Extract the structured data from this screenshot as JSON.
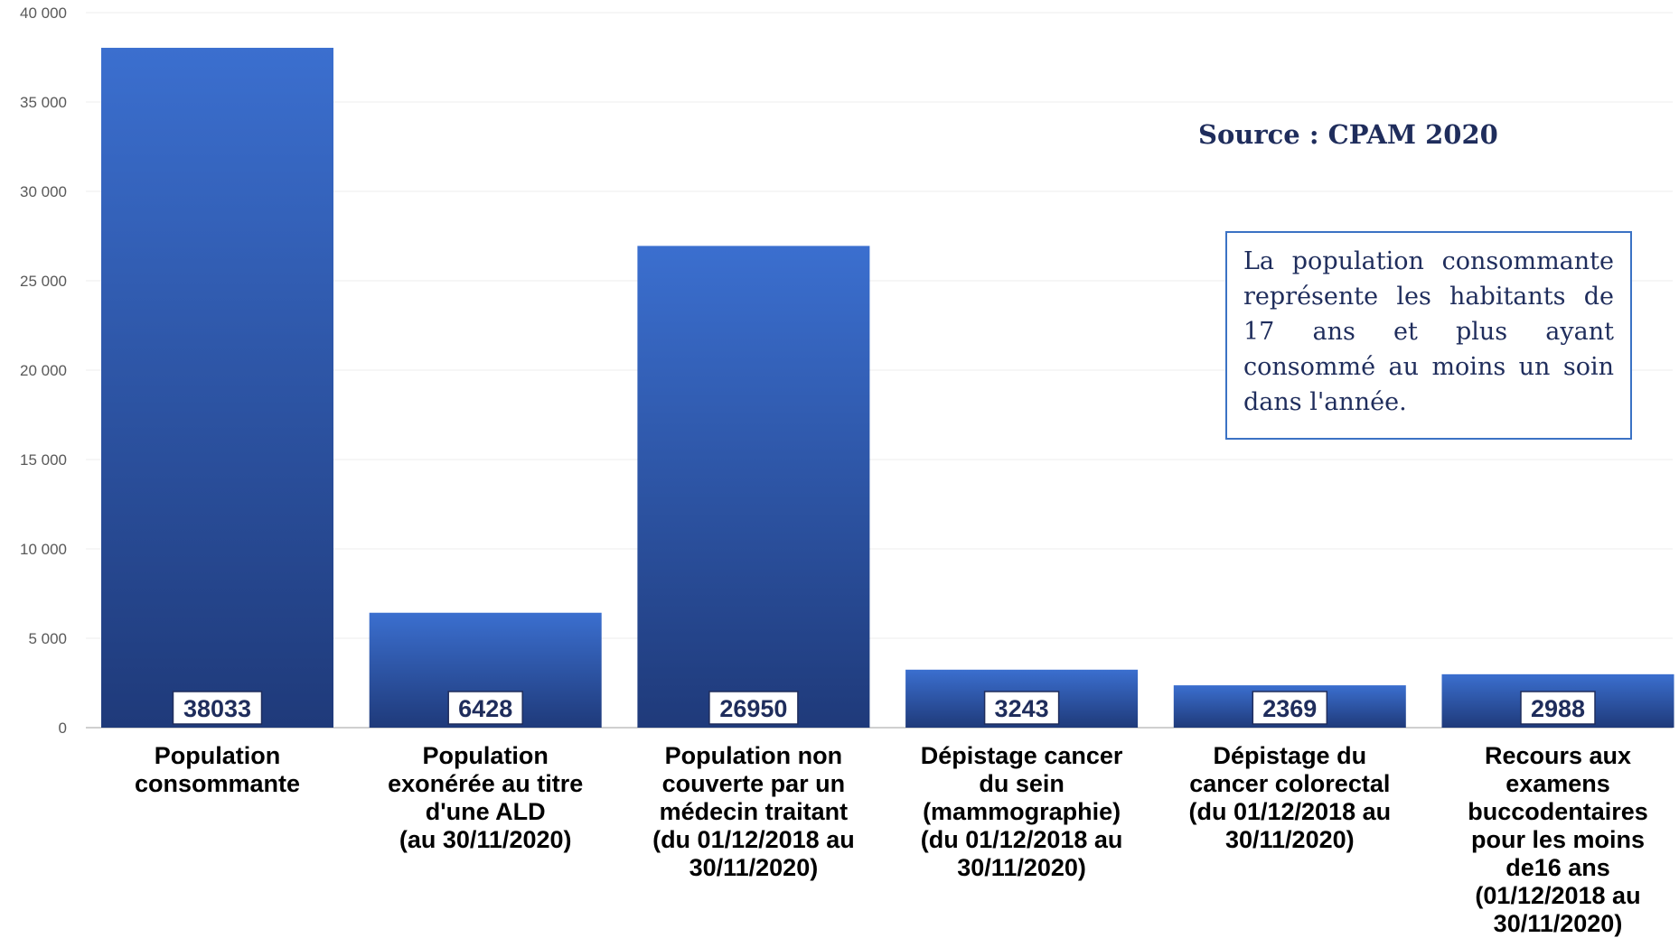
{
  "chart_data": {
    "type": "bar",
    "categories": [
      "Population\nconsommante",
      "Population\nexonérée au titre\nd'une ALD\n(au 30/11/2020)",
      "Population non\ncouverte par un\nmédecin traitant\n(du 01/12/2018 au\n30/11/2020)",
      "Dépistage cancer\ndu sein\n(mammographie)\n(du 01/12/2018 au\n30/11/2020)",
      "Dépistage du\ncancer colorectal\n(du 01/12/2018 au\n30/11/2020)",
      "Recours aux\nexamens\nbuccodentaires\npour les moins\nde16 ans\n(01/12/2018 au\n30/11/2020)"
    ],
    "values": [
      38033,
      6428,
      26950,
      3243,
      2369,
      2988
    ],
    "value_labels": [
      "38033",
      "6428",
      "26950",
      "3243",
      "2369",
      "2988"
    ],
    "ylim": [
      0,
      40000
    ],
    "yticks": [
      0,
      5000,
      10000,
      15000,
      20000,
      25000,
      30000,
      35000,
      40000
    ],
    "ytick_labels": [
      "0",
      "5 000",
      "10 000",
      "15 000",
      "20 000",
      "25 000",
      "30 000",
      "35 000",
      "40 000"
    ],
    "grid": true,
    "bar_color_top": "#3b6fcf",
    "bar_color_bottom": "#1f3a7a",
    "label_color": "#1f2d5c"
  },
  "annotations": {
    "source": "Source : CPAM 2020",
    "note": "La population consommante représente les habitants de 17 ans et plus ayant consommé au moins un soin dans l'année."
  }
}
